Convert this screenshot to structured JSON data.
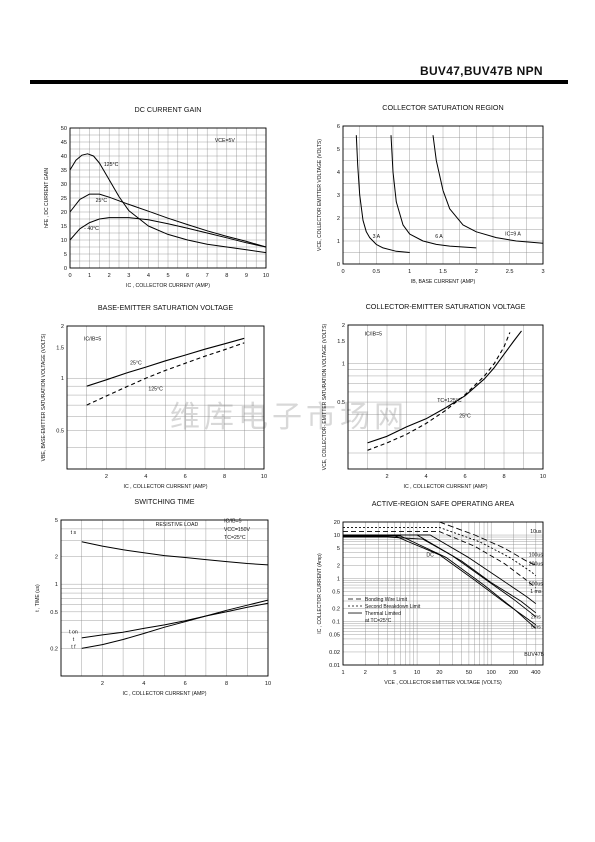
{
  "header": {
    "part_number": "BUV47,BUV47B  NPN"
  },
  "watermark": {
    "text": "维库电子市场网"
  },
  "chart_data": [
    {
      "id": "dc_current_gain",
      "type": "line",
      "title": "DC CURRENT GAIN",
      "xlabel": "IC , COLLECTOR CURRENT (AMP)",
      "ylabel": "hFE , DC CURRENT GAIN",
      "xlim": [
        0,
        10
      ],
      "ylim": [
        0,
        50
      ],
      "xscale": "linear",
      "yscale": "linear",
      "grid": true,
      "xticks": [
        0,
        1,
        2,
        3,
        4,
        5,
        6,
        7,
        8,
        9,
        10
      ],
      "yticks": [
        0,
        5,
        10,
        15,
        20,
        25,
        30,
        35,
        40,
        45,
        50
      ],
      "annotations": [
        {
          "text": "VCE=5V",
          "x": 7.9,
          "y": 45
        },
        {
          "text": "125°C",
          "x": 2.1,
          "y": 36.5
        },
        {
          "text": "25°C",
          "x": 1.6,
          "y": 23.5
        },
        {
          "text": "- 40°C",
          "x": 1.1,
          "y": 13.5
        }
      ],
      "series": [
        {
          "x": [
            0,
            0.3,
            0.6,
            0.9,
            1.2,
            1.5,
            2,
            2.5,
            3,
            4,
            5,
            6,
            7,
            8,
            9,
            10
          ],
          "y": [
            35,
            38.5,
            40.3,
            40.8,
            40,
            37.5,
            31.5,
            25.5,
            20.5,
            15,
            12,
            10,
            8.5,
            7.5,
            6.5,
            5.5
          ]
        },
        {
          "x": [
            0,
            0.5,
            1,
            1.5,
            2,
            3,
            4,
            5,
            6,
            7,
            8,
            9,
            10
          ],
          "y": [
            20,
            24.5,
            26.4,
            26.4,
            25.3,
            22.7,
            20.3,
            17.8,
            15.5,
            13.3,
            11.3,
            9.5,
            7.5
          ]
        },
        {
          "x": [
            0,
            0.5,
            1,
            1.5,
            2,
            3,
            4,
            5,
            6,
            7,
            8,
            9,
            10
          ],
          "y": [
            10,
            14,
            16.2,
            17.5,
            18,
            18,
            17.2,
            15.8,
            14.2,
            12.5,
            10.8,
            9,
            7.5
          ]
        }
      ]
    },
    {
      "id": "collector_saturation_region",
      "type": "line",
      "title": "COLLECTOR SATURATION REGION",
      "xlabel": "IB, BASE CURRENT (AMP)",
      "ylabel": "VCE, COLLECTOR EMITTER VOLTAGE (VOLTS)",
      "xlim": [
        0,
        3
      ],
      "ylim": [
        0,
        6
      ],
      "xscale": "linear",
      "yscale": "linear",
      "grid": true,
      "xticks": [
        0,
        0.5,
        1,
        1.5,
        2,
        2.5,
        3
      ],
      "yticks": [
        0,
        1,
        2,
        3,
        4,
        5,
        6
      ],
      "annotations": [
        {
          "text": "3 A",
          "x": 0.5,
          "y": 1.12
        },
        {
          "text": "6 A",
          "x": 1.44,
          "y": 1.12
        },
        {
          "text": "IC=9 A",
          "x": 2.55,
          "y": 1.25
        }
      ],
      "series": [
        {
          "x": [
            0.2,
            0.22,
            0.25,
            0.3,
            0.35,
            0.4,
            0.5,
            0.6,
            0.8,
            1.0
          ],
          "y": [
            5.6,
            4.3,
            3.0,
            1.9,
            1.4,
            1.15,
            0.85,
            0.7,
            0.55,
            0.5
          ]
        },
        {
          "x": [
            0.72,
            0.75,
            0.8,
            0.9,
            1.0,
            1.2,
            1.4,
            1.6,
            2.0
          ],
          "y": [
            5.6,
            4.0,
            2.7,
            1.7,
            1.3,
            1.0,
            0.85,
            0.78,
            0.7
          ]
        },
        {
          "x": [
            1.35,
            1.4,
            1.5,
            1.6,
            1.8,
            2.0,
            2.3,
            2.6,
            3.0
          ],
          "y": [
            5.6,
            4.5,
            3.2,
            2.4,
            1.7,
            1.4,
            1.15,
            1.0,
            0.9
          ]
        }
      ]
    },
    {
      "id": "base_emitter_saturation_voltage",
      "type": "line",
      "title": "BASE-EMITTER  SATURATION VOLTAGE",
      "xlabel": "IC , COLLECTOR CURRENT (AMP)",
      "ylabel": "VBE, BASE-EMITTER SATURATION VOLTAGE (VOLTS)",
      "xlim": [
        0,
        10
      ],
      "ylim": [
        0.3,
        2
      ],
      "xscale": "linear",
      "yscale": "log",
      "grid": true,
      "xticks": [
        2,
        4,
        6,
        8,
        10
      ],
      "yticks": [
        0.5,
        1,
        1.5,
        2
      ],
      "annotations": [
        {
          "text": "IC/IB=5",
          "x": 1.3,
          "y": 1.65
        },
        {
          "text": "25°C",
          "x": 3.5,
          "y": 1.2
        },
        {
          "text": "125°C",
          "x": 4.5,
          "y": 0.85
        }
      ],
      "series": [
        {
          "x": [
            1,
            2,
            3,
            4,
            5,
            6,
            7,
            8,
            9
          ],
          "y": [
            0.9,
            0.98,
            1.07,
            1.16,
            1.26,
            1.36,
            1.47,
            1.58,
            1.7
          ]
        },
        {
          "x": [
            1,
            2,
            3,
            4,
            5,
            6,
            7,
            8,
            9
          ],
          "y": [
            0.7,
            0.79,
            0.89,
            1.0,
            1.11,
            1.22,
            1.34,
            1.46,
            1.6
          ]
        }
      ]
    },
    {
      "id": "collector_emitter_saturation_voltage",
      "type": "line",
      "title": "COLLECTOR-EMITTER SATURATION VOLTAGE",
      "xlabel": "IC , COLLECTOR CURRENT (AMP)",
      "ylabel": "VCE, COLLECTOR- EMITTER SATURATION VOLTAGE (VOLTS)",
      "xlim": [
        0,
        10
      ],
      "ylim": [
        0.15,
        2
      ],
      "xscale": "linear",
      "yscale": "log",
      "grid": true,
      "xticks": [
        2,
        4,
        6,
        8,
        10
      ],
      "yticks": [
        0.5,
        1,
        1.5,
        2
      ],
      "annotations": [
        {
          "text": "IC/IB=5",
          "x": 1.3,
          "y": 1.65
        },
        {
          "text": "TC=125°C",
          "x": 5.2,
          "y": 0.5
        },
        {
          "text": "25°C",
          "x": 6.0,
          "y": 0.38
        }
      ],
      "series": [
        {
          "x": [
            1,
            2,
            3,
            4,
            5,
            6,
            7,
            7.5,
            8,
            8.5,
            8.9
          ],
          "y": [
            0.24,
            0.27,
            0.32,
            0.37,
            0.45,
            0.56,
            0.76,
            0.93,
            1.18,
            1.5,
            1.8
          ]
        },
        {
          "x": [
            1,
            2,
            3,
            4,
            5,
            6,
            7,
            7.5,
            8,
            8.3
          ],
          "y": [
            0.21,
            0.24,
            0.28,
            0.34,
            0.43,
            0.57,
            0.8,
            1.0,
            1.35,
            1.75
          ]
        }
      ]
    },
    {
      "id": "switching_time",
      "type": "line",
      "title": "SWITCHING TIME",
      "xlabel": "IC , COLLECTOR CURRENT (AMP)",
      "ylabel": "t , TIME (us)",
      "xlim": [
        0,
        10
      ],
      "ylim": [
        0.1,
        5
      ],
      "xscale": "linear",
      "yscale": "log",
      "grid": true,
      "xticks": [
        2,
        4,
        6,
        8,
        10
      ],
      "yticks": [
        0.2,
        0.5,
        1,
        2,
        5
      ],
      "annotations": [
        {
          "text": "RESISTIVE LOAD",
          "x": 5.6,
          "y": 4.3
        },
        {
          "text": "IC/IB=5",
          "x": 8.3,
          "y": 4.7
        },
        {
          "text": "VCC=150V",
          "x": 8.5,
          "y": 3.8
        },
        {
          "text": "TC=25°C",
          "x": 8.4,
          "y": 3.1
        },
        {
          "text": "t s",
          "x": 0.6,
          "y": 3.5
        },
        {
          "text": "t on",
          "x": 0.6,
          "y": 0.29
        },
        {
          "text": "t",
          "x": 0.6,
          "y": 0.24
        },
        {
          "text": "t f",
          "x": 0.6,
          "y": 0.2
        }
      ],
      "series": [
        {
          "x": [
            1,
            2,
            3,
            4,
            5,
            6,
            7,
            8,
            9,
            10
          ],
          "y": [
            2.9,
            2.6,
            2.37,
            2.2,
            2.05,
            1.95,
            1.85,
            1.76,
            1.68,
            1.62
          ]
        },
        {
          "x": [
            1,
            2,
            3,
            4,
            5,
            6,
            7,
            8,
            9,
            10
          ],
          "y": [
            0.26,
            0.28,
            0.3,
            0.33,
            0.36,
            0.4,
            0.45,
            0.5,
            0.56,
            0.62
          ]
        },
        {
          "x": [
            1,
            2,
            3,
            4,
            5,
            6,
            7,
            8,
            9,
            10
          ],
          "y": [
            0.2,
            0.22,
            0.25,
            0.29,
            0.34,
            0.39,
            0.45,
            0.52,
            0.59,
            0.67
          ]
        }
      ]
    },
    {
      "id": "active_region_safe_operating_area",
      "type": "line",
      "title": "ACTIVE-REGION SAFE OPERATING AREA",
      "xlabel": "VCE , COLLECTOR EMITTER VOLTAGE (VOLTS)",
      "ylabel": "IC , COLLECTOR CURRENT (Amp)",
      "xlim": [
        1,
        500
      ],
      "ylim": [
        0.01,
        20
      ],
      "xscale": "log",
      "yscale": "log",
      "grid": true,
      "xticks": [
        1,
        2,
        5,
        10,
        20,
        50,
        100,
        200,
        400
      ],
      "yticks": [
        0.01,
        0.02,
        0.05,
        0.1,
        0.2,
        0.5,
        1,
        2,
        5,
        10,
        20
      ],
      "annotations": [
        {
          "text": "DC",
          "x": 15,
          "y": 3.2
        },
        {
          "text": "10us",
          "x": 400,
          "y": 11
        },
        {
          "text": "100us",
          "x": 400,
          "y": 3.2
        },
        {
          "text": "200us",
          "x": 400,
          "y": 2
        },
        {
          "text": "500us",
          "x": 400,
          "y": 0.68
        },
        {
          "text": "1 ms",
          "x": 400,
          "y": 0.46
        },
        {
          "text": "2ms",
          "x": 400,
          "y": 0.12
        },
        {
          "text": "5ms",
          "x": 400,
          "y": 0.07
        },
        {
          "text": "BUV47B",
          "x": 380,
          "y": 0.016
        }
      ],
      "legend": [
        "Bonding Wire Limit",
        "Second Breakdown Limit",
        "Thermal Limited",
        "at TC=25°C"
      ],
      "series": [
        {
          "x": [
            1,
            4,
            12,
            30,
            80,
            200,
            400
          ],
          "y": [
            9,
            9,
            8,
            3.3,
            1.0,
            0.33,
            0.13
          ]
        },
        {
          "x": [
            1,
            20,
            60,
            150,
            300,
            400
          ],
          "y": [
            12,
            12,
            5.5,
            2.2,
            0.9,
            0.6
          ]
        },
        {
          "x": [
            1,
            20,
            70,
            180,
            350,
            400
          ],
          "y": [
            15,
            15,
            7,
            3,
            1.4,
            1.15
          ]
        },
        {
          "x": [
            1,
            10,
            40,
            100,
            250,
            400
          ],
          "y": [
            10,
            10,
            2.5,
            0.8,
            0.3,
            0.16
          ]
        },
        {
          "x": [
            1,
            15,
            50,
            130,
            300,
            400
          ],
          "y": [
            10,
            10,
            3,
            1.0,
            0.38,
            0.26
          ]
        },
        {
          "x": [
            1,
            5,
            20,
            60,
            150,
            400
          ],
          "y": [
            9.5,
            9.5,
            3.5,
            0.9,
            0.28,
            0.085
          ]
        },
        {
          "x": [
            1,
            6,
            25,
            80,
            200,
            400
          ],
          "y": [
            9.5,
            9.5,
            3,
            0.7,
            0.2,
            0.07
          ]
        },
        {
          "x": [
            20,
            60,
            150,
            300,
            400
          ],
          "y": [
            20,
            10,
            5,
            2.5,
            2
          ]
        }
      ]
    }
  ]
}
